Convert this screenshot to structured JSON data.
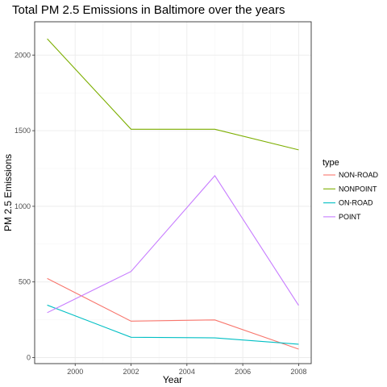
{
  "chart_data": {
    "type": "line",
    "title": "Total PM 2.5 Emissions in Baltimore over the years",
    "xlabel": "Year",
    "ylabel": "PM 2.5 Emissions",
    "x": [
      1999,
      2002,
      2005,
      2008
    ],
    "xlim": [
      1998.55,
      2008.45
    ],
    "ylim": [
      -40,
      2220
    ],
    "x_ticks": [
      2000,
      2002,
      2004,
      2006,
      2008
    ],
    "y_ticks": [
      0,
      500,
      1000,
      1500,
      2000
    ],
    "grid": true,
    "legend": {
      "title": "type",
      "placement": "right"
    },
    "series": [
      {
        "name": "NON-ROAD",
        "color": "#F8766D",
        "values": [
          522.9,
          240.8,
          248.9,
          55.8
        ]
      },
      {
        "name": "NONPOINT",
        "color": "#7CAE00",
        "values": [
          2107.6,
          1509.5,
          1509.5,
          1373.2
        ]
      },
      {
        "name": "ON-ROAD",
        "color": "#00BFC4",
        "values": [
          346.8,
          134.3,
          130.4,
          88.3
        ]
      },
      {
        "name": "POINT",
        "color": "#C77CFF",
        "values": [
          296.8,
          569.3,
          1202.5,
          344.98
        ]
      }
    ]
  }
}
